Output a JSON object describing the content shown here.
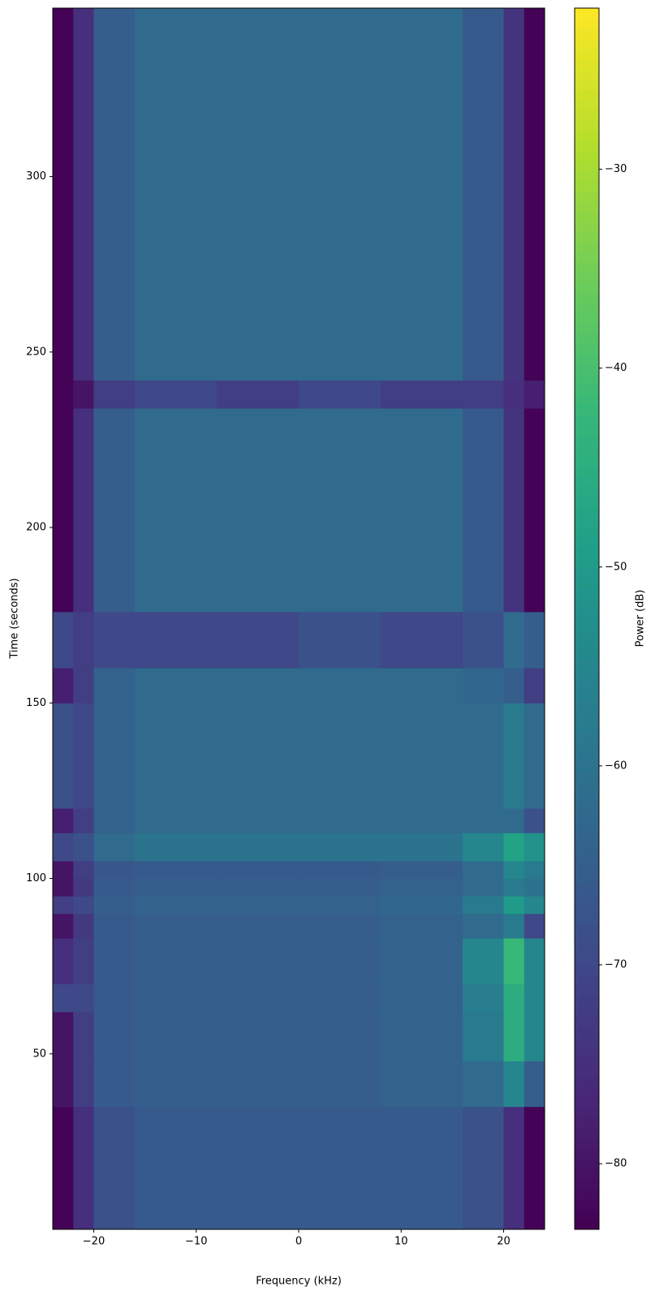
{
  "chart_data": {
    "type": "heatmap",
    "colormap": "viridis",
    "xlabel": "Frequency (kHz)",
    "ylabel": "Time (seconds)",
    "colorbar_label": "Power (dB)",
    "x_edges": [
      -24,
      -22,
      -20,
      -16,
      -8,
      0,
      8,
      16,
      20,
      22,
      24
    ],
    "y_edges": [
      0,
      35,
      48,
      62,
      70,
      83,
      90,
      95,
      100,
      105,
      113,
      120,
      150,
      160,
      176,
      234,
      242,
      348
    ],
    "z": [
      [
        -83,
        -75,
        -68,
        -66,
        -66,
        -66,
        -66,
        -68,
        -75,
        -83
      ],
      [
        -80,
        -72,
        -66,
        -65,
        -65,
        -65,
        -64,
        -62,
        -55,
        -65
      ],
      [
        -80,
        -72,
        -66,
        -65,
        -65,
        -65,
        -64,
        -58,
        -45,
        -55
      ],
      [
        -70,
        -70,
        -66,
        -65,
        -65,
        -65,
        -64,
        -57,
        -45,
        -55
      ],
      [
        -75,
        -72,
        -66,
        -65,
        -65,
        -65,
        -64,
        -55,
        -42,
        -55
      ],
      [
        -80,
        -73,
        -66,
        -65,
        -65,
        -65,
        -64,
        -62,
        -58,
        -70
      ],
      [
        -72,
        -70,
        -65,
        -64,
        -64,
        -64,
        -63,
        -58,
        -50,
        -55
      ],
      [
        -80,
        -73,
        -66,
        -65,
        -65,
        -65,
        -64,
        -62,
        -58,
        -60
      ],
      [
        -80,
        -72,
        -67,
        -66,
        -66,
        -66,
        -65,
        -62,
        -55,
        -58
      ],
      [
        -70,
        -68,
        -62,
        -60,
        -60,
        -60,
        -60,
        -55,
        -48,
        -52
      ],
      [
        -78,
        -72,
        -64,
        -62,
        -62,
        -62,
        -62,
        -62,
        -62,
        -68
      ],
      [
        -68,
        -70,
        -64,
        -62,
        -62,
        -62,
        -62,
        -62,
        -58,
        -62
      ],
      [
        -78,
        -72,
        -64,
        -62,
        -62,
        -62,
        -62,
        -63,
        -65,
        -72
      ],
      [
        -70,
        -72,
        -70,
        -70,
        -70,
        -68,
        -70,
        -68,
        -62,
        -65
      ],
      [
        -83,
        -75,
        -65,
        -62,
        -62,
        -62,
        -62,
        -66,
        -74,
        -83
      ],
      [
        -83,
        -80,
        -72,
        -70,
        -72,
        -70,
        -72,
        -72,
        -75,
        -78
      ],
      [
        -83,
        -75,
        -65,
        -62,
        -62,
        -62,
        -62,
        -66,
        -74,
        -83
      ]
    ],
    "xlim": [
      -24,
      24
    ],
    "ylim": [
      0,
      348
    ],
    "clim": [
      -83.3,
      -21.9
    ],
    "xticks": [
      {
        "value": -20,
        "label": "−20"
      },
      {
        "value": -10,
        "label": "−10"
      },
      0,
      10,
      20
    ],
    "yticks": [
      50,
      100,
      150,
      200,
      250,
      300
    ],
    "cticks": [
      {
        "value": -80,
        "label": "−80"
      },
      {
        "value": -70,
        "label": "−70"
      },
      {
        "value": -60,
        "label": "−60"
      },
      {
        "value": -50,
        "label": "−50"
      },
      {
        "value": -40,
        "label": "−40"
      },
      {
        "value": -30,
        "label": "−30"
      }
    ]
  }
}
